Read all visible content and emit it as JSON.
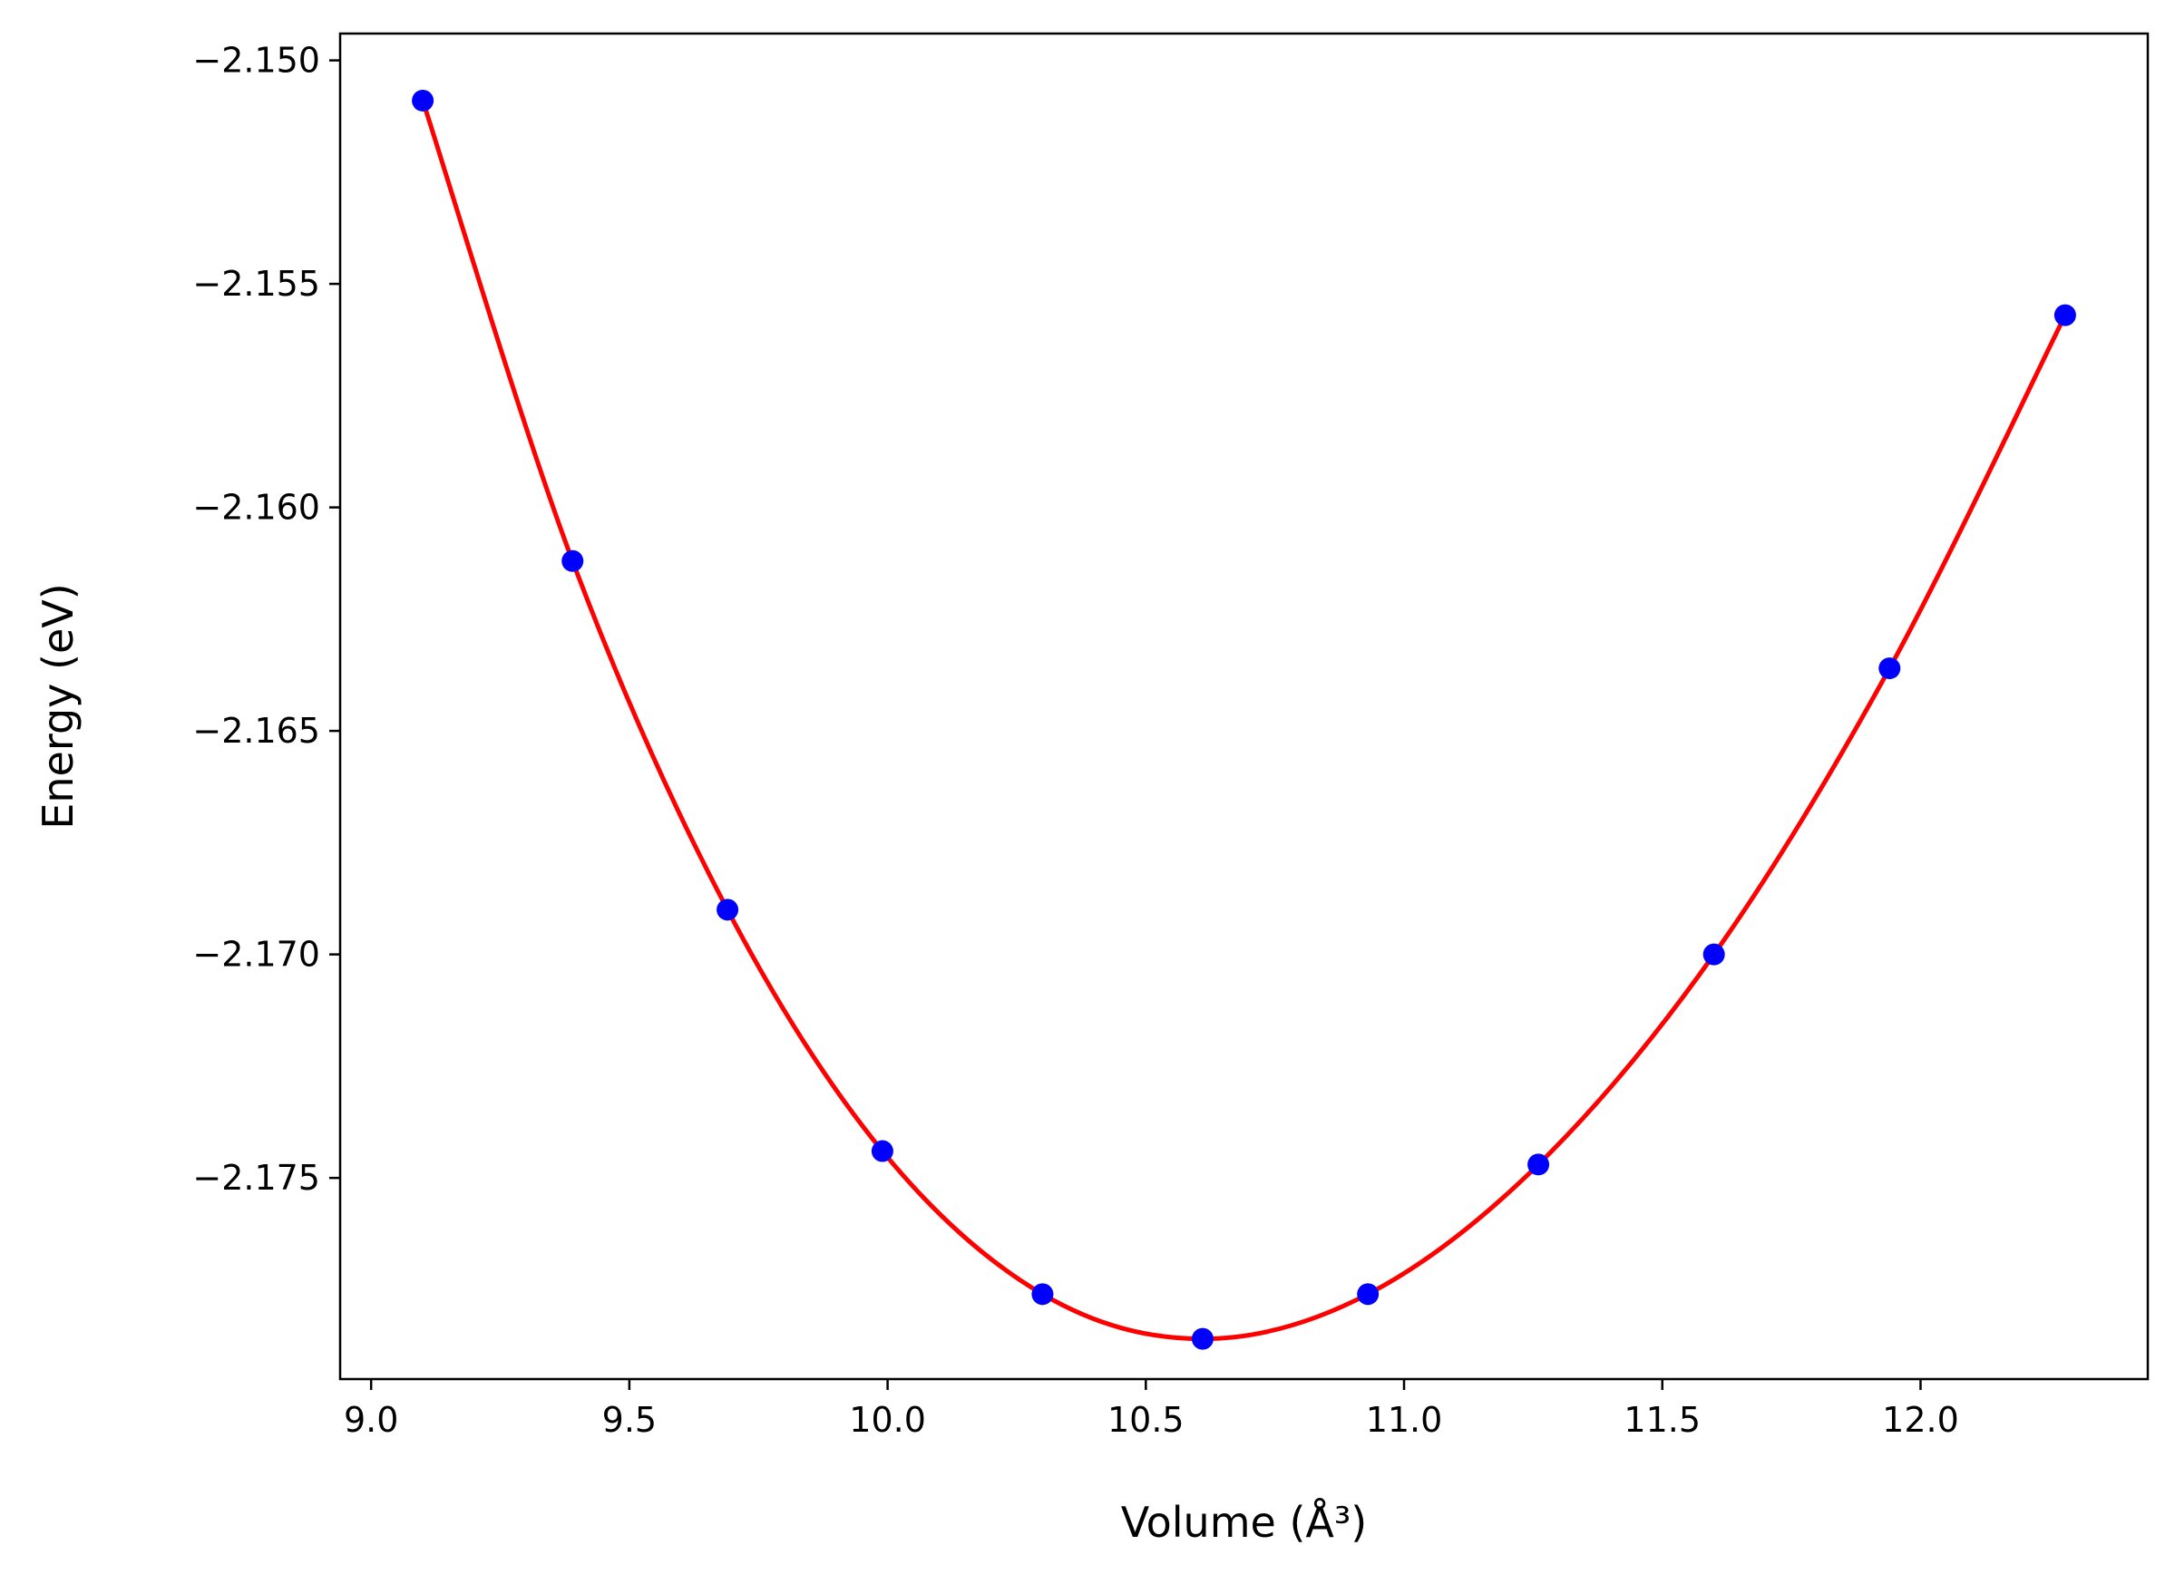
{
  "chart_data": {
    "type": "scatter",
    "title": "",
    "xlabel": "Volume (Å³)",
    "ylabel": "Energy (eV)",
    "xlim": [
      8.94,
      12.44
    ],
    "ylim": [
      -2.1795,
      -2.1494
    ],
    "grid": false,
    "legend": "none",
    "x_ticks": [
      9.0,
      9.5,
      10.0,
      10.5,
      11.0,
      11.5,
      12.0
    ],
    "x_tick_labels": [
      "9.0",
      "9.5",
      "10.0",
      "10.5",
      "11.0",
      "11.5",
      "12.0"
    ],
    "y_ticks": [
      -2.15,
      -2.155,
      -2.16,
      -2.165,
      -2.17,
      -2.175
    ],
    "y_tick_labels": [
      "−2.150",
      "−2.155",
      "−2.160",
      "−2.165",
      "−2.170",
      "−2.175"
    ],
    "series": [
      {
        "kind": "points",
        "color": "#0000ff",
        "x": [
          9.1,
          9.39,
          9.69,
          9.99,
          10.3,
          10.61,
          10.93,
          11.26,
          11.6,
          11.94,
          12.28
        ],
        "y": [
          -2.1509,
          -2.1612,
          -2.169,
          -2.1744,
          -2.1776,
          -2.1786,
          -2.1776,
          -2.1747,
          -2.17,
          -2.1636,
          -2.1557
        ]
      },
      {
        "kind": "fit-line",
        "color": "#ff0000",
        "x": [
          9.1,
          9.39,
          9.69,
          9.99,
          10.3,
          10.61,
          10.93,
          11.26,
          11.6,
          11.94,
          12.28
        ],
        "y": [
          -2.1509,
          -2.1612,
          -2.169,
          -2.1744,
          -2.1776,
          -2.1786,
          -2.1776,
          -2.1747,
          -2.17,
          -2.1636,
          -2.1557
        ]
      }
    ]
  }
}
